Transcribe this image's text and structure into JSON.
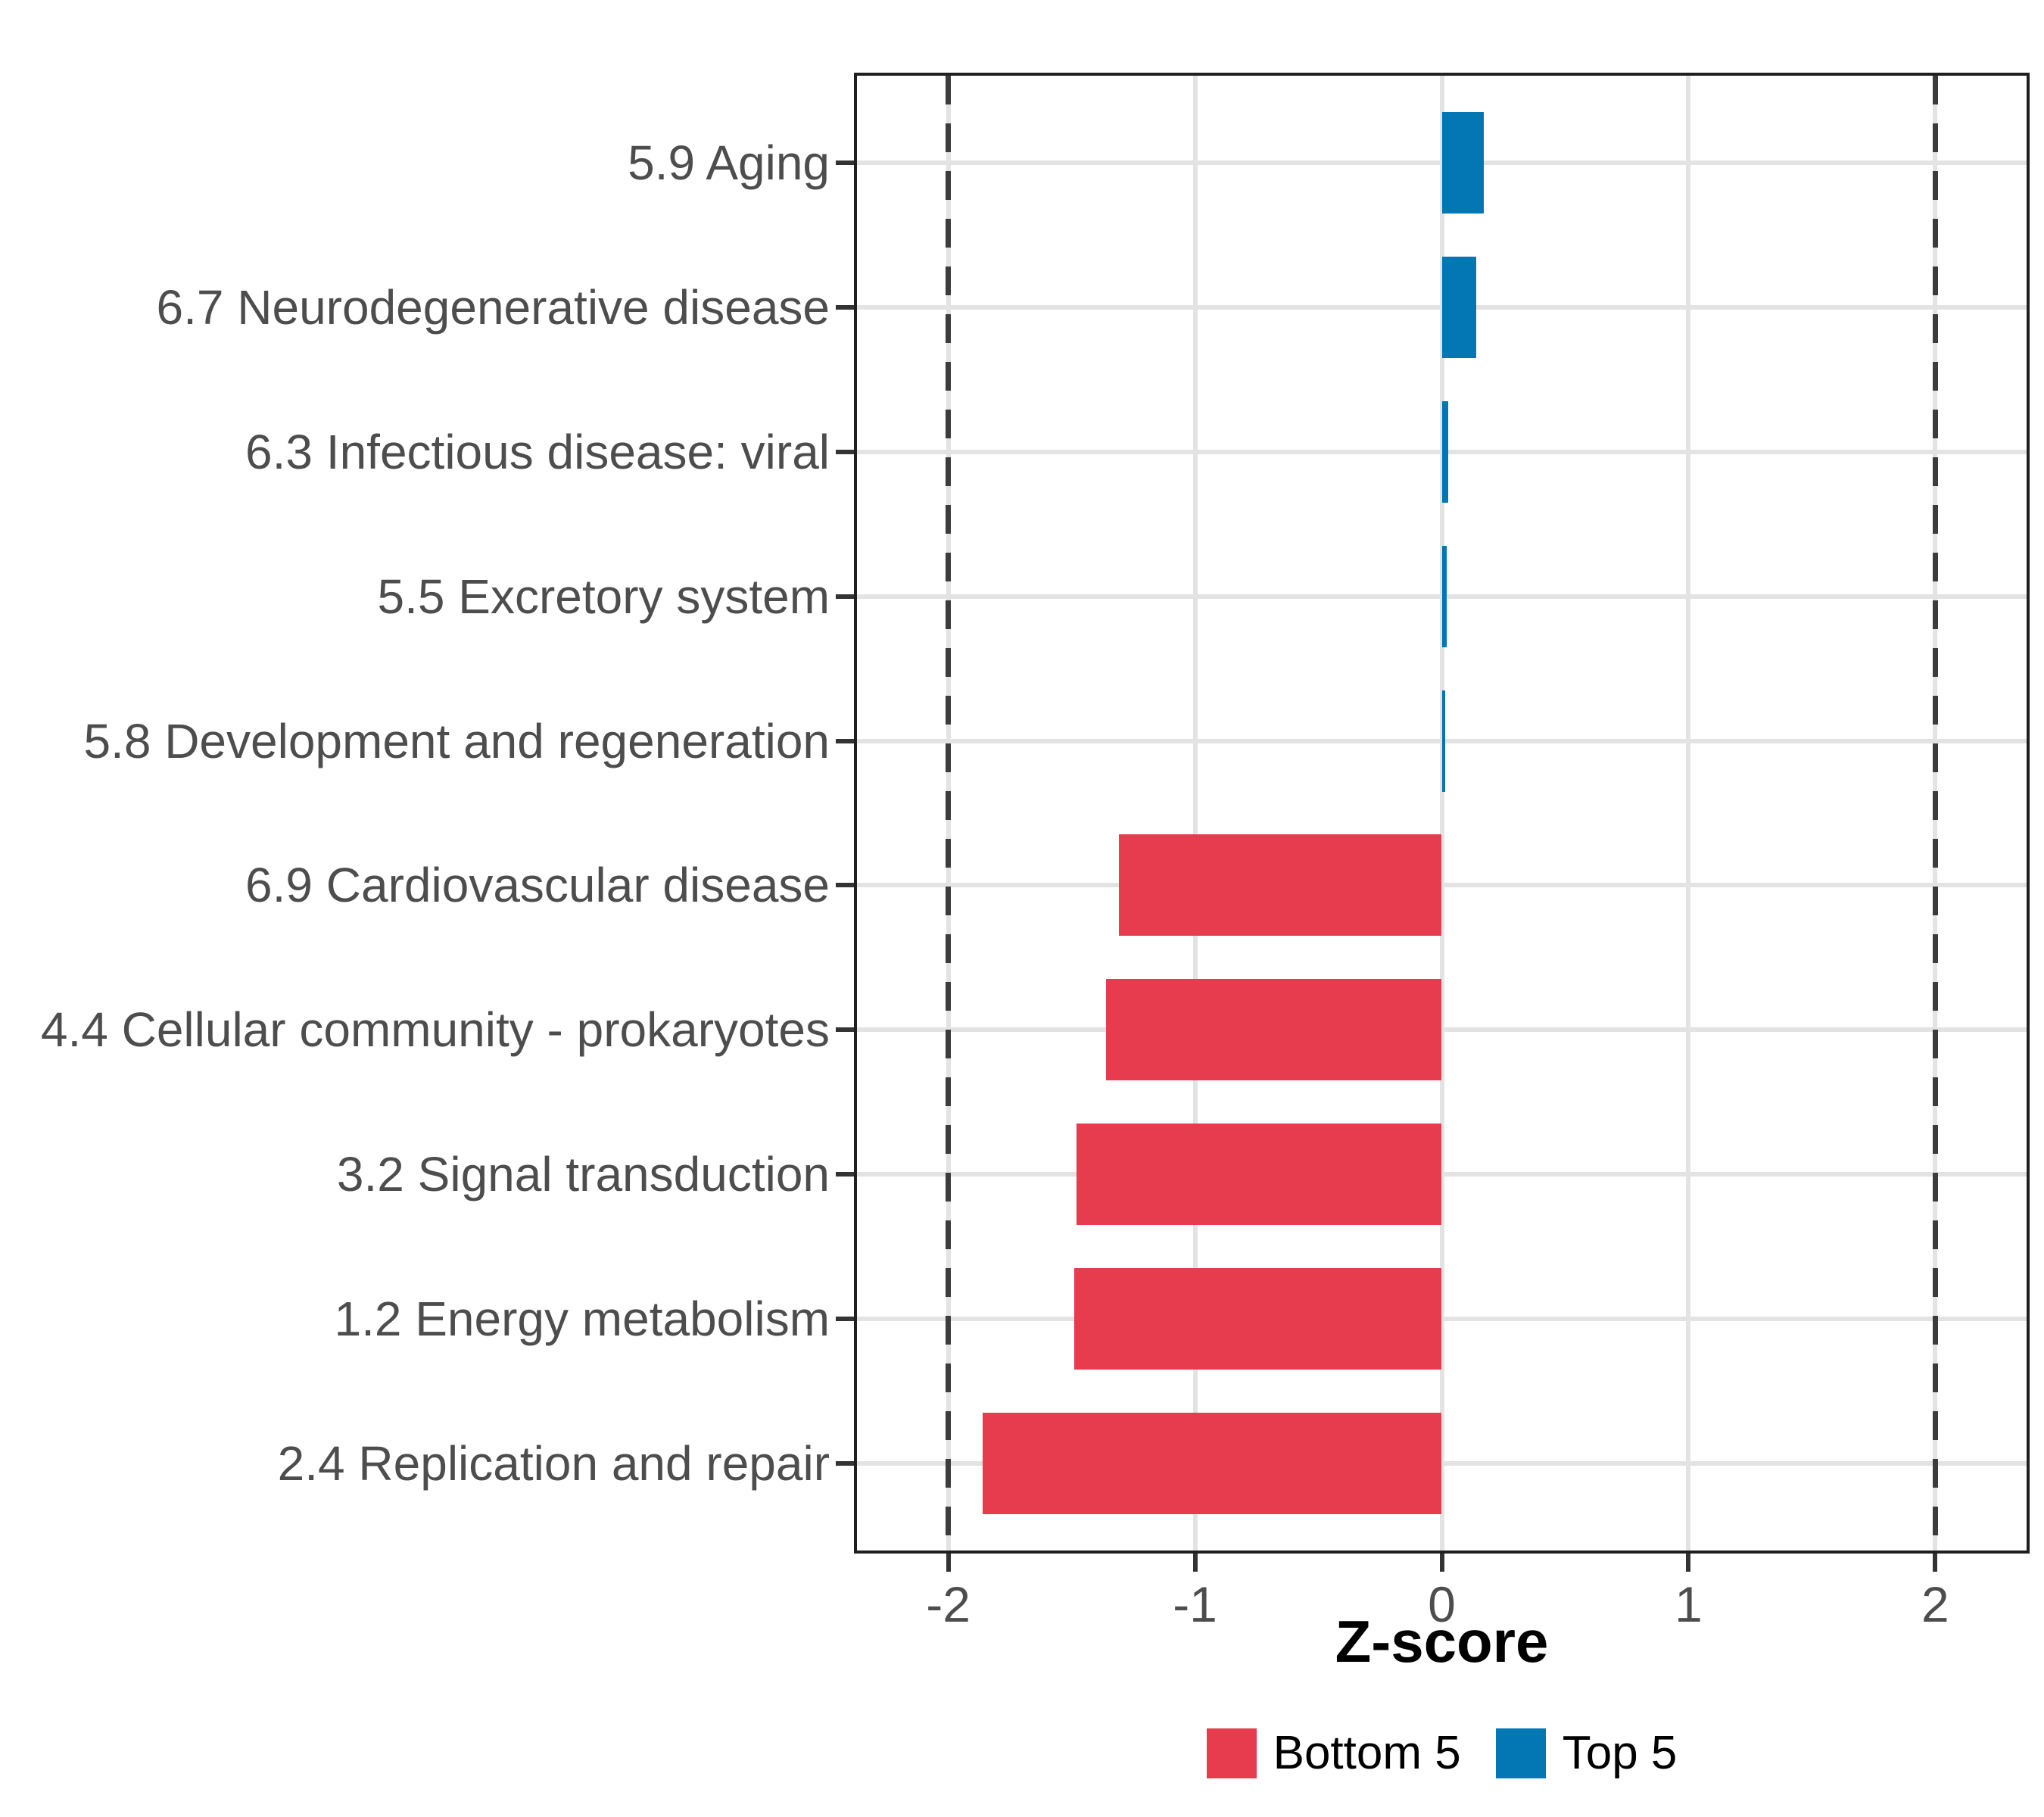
{
  "chart_data": {
    "type": "bar",
    "orientation": "horizontal",
    "xlabel": "Z-score",
    "xlim": [
      -2.37,
      2.37
    ],
    "x_ticks": [
      -2,
      -1,
      0,
      1,
      2
    ],
    "x_tick_labels": [
      "-2",
      "-1",
      "0",
      "1",
      "2"
    ],
    "reference_lines": [
      -2,
      2
    ],
    "grid": true,
    "categories": [
      "5.9 Aging",
      "6.7 Neurodegenerative disease",
      "6.3 Infectious disease: viral",
      "5.5 Excretory system",
      "5.8 Development and regeneration",
      "6.9 Cardiovascular disease",
      "4.4 Cellular community - prokaryotes",
      "3.2 Signal transduction",
      "1.2 Energy metabolism",
      "2.4 Replication and repair"
    ],
    "values": [
      0.17,
      0.14,
      0.025,
      0.02,
      0.015,
      -1.31,
      -1.36,
      -1.48,
      -1.49,
      -1.86
    ],
    "groups": [
      "top5",
      "top5",
      "top5",
      "top5",
      "top5",
      "bottom5",
      "bottom5",
      "bottom5",
      "bottom5",
      "bottom5"
    ],
    "colors": {
      "top5": "#0277b4",
      "bottom5": "#e73b4e"
    },
    "legend_position": "bottom"
  },
  "legend": {
    "items": [
      {
        "label": "Bottom 5",
        "color": "#e73b4e"
      },
      {
        "label": "Top 5",
        "color": "#0277b4"
      }
    ]
  },
  "style_colors": {
    "gridline": "#e3e3e3",
    "panel_border": "#1f1f1f",
    "axis_text": "#4d4d4d",
    "tick_mark": "#333333",
    "dashed_reference": "#3c3c3c"
  }
}
